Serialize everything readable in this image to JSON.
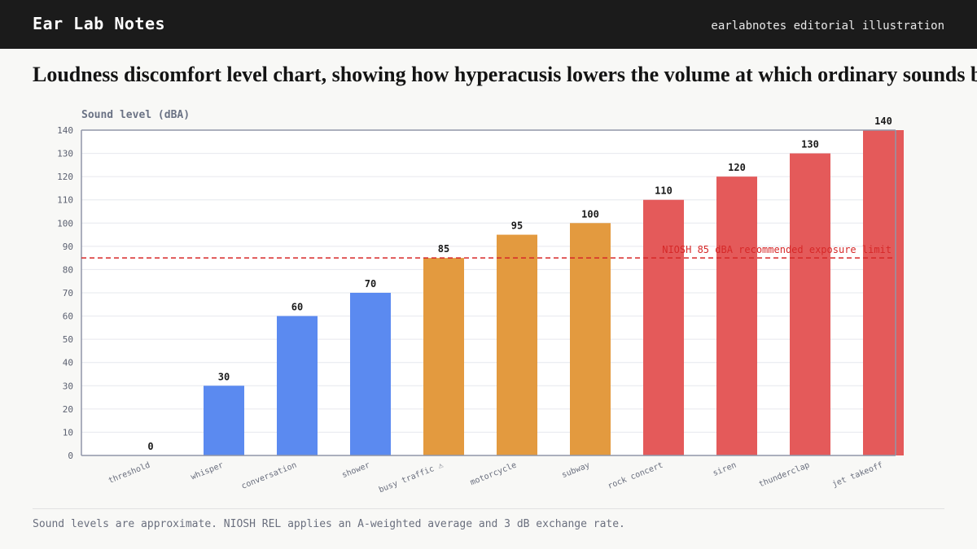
{
  "header": {
    "brand": "Ear Lab Notes",
    "tagline": "earlabnotes editorial illustration"
  },
  "headline": "Loudness discomfort level chart, showing how hyperacusis lowers the volume at which ordinary sounds become painful",
  "footnote": "Sound levels are approximate. NIOSH REL applies an A-weighted average and 3 dB exchange rate.",
  "colors": {
    "quiet": "#5b8af0",
    "moderate": "#e39a3f",
    "loud": "#e45a5a",
    "reference": "#d62828"
  },
  "chart_data": {
    "type": "bar",
    "ylabel": "Sound level (dBA)",
    "xlabel": "",
    "ylim": [
      0,
      140
    ],
    "yticks": [
      0,
      10,
      20,
      30,
      40,
      50,
      60,
      70,
      80,
      90,
      100,
      110,
      120,
      130,
      140
    ],
    "grid": true,
    "categories": [
      "threshold",
      "whisper",
      "conversation",
      "shower",
      "busy traffic ⚠",
      "motorcycle",
      "subway",
      "rock concert",
      "siren",
      "thunderclap",
      "jet takeoff"
    ],
    "values": [
      0,
      30,
      60,
      70,
      85,
      95,
      100,
      110,
      120,
      130,
      140
    ],
    "value_labels": [
      "0",
      "30",
      "60",
      "70",
      "85",
      "95",
      "100",
      "110",
      "120",
      "130",
      "140"
    ],
    "bar_groups": [
      "quiet",
      "quiet",
      "quiet",
      "quiet",
      "moderate",
      "moderate",
      "moderate",
      "loud",
      "loud",
      "loud",
      "loud"
    ],
    "reference_line": {
      "value": 85,
      "label": "NIOSH 85 dBA recommended exposure limit"
    }
  }
}
